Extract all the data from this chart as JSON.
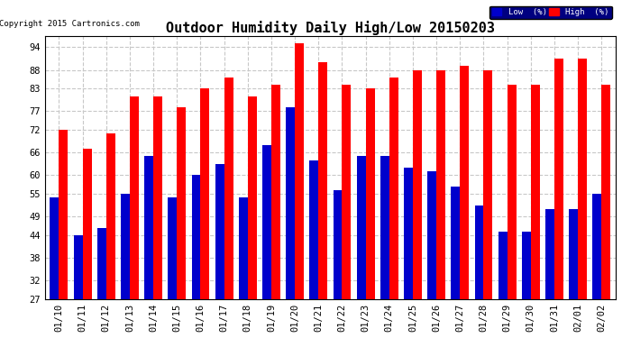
{
  "title": "Outdoor Humidity Daily High/Low 20150203",
  "copyright": "Copyright 2015 Cartronics.com",
  "dates": [
    "01/10",
    "01/11",
    "01/12",
    "01/13",
    "01/14",
    "01/15",
    "01/16",
    "01/17",
    "01/18",
    "01/19",
    "01/20",
    "01/21",
    "01/22",
    "01/23",
    "01/24",
    "01/25",
    "01/26",
    "01/27",
    "01/28",
    "01/29",
    "01/30",
    "01/31",
    "02/01",
    "02/02"
  ],
  "high": [
    72,
    67,
    71,
    81,
    81,
    78,
    83,
    86,
    81,
    84,
    95,
    90,
    84,
    83,
    86,
    88,
    88,
    89,
    88,
    84,
    84,
    91,
    91,
    84
  ],
  "low": [
    54,
    44,
    46,
    55,
    65,
    54,
    60,
    63,
    54,
    68,
    78,
    64,
    56,
    65,
    65,
    62,
    61,
    57,
    52,
    45,
    45,
    51,
    51,
    55
  ],
  "high_color": "#ff0000",
  "low_color": "#0000cc",
  "bg_color": "#ffffff",
  "grid_color": "#c8c8c8",
  "yticks": [
    27,
    32,
    38,
    44,
    49,
    55,
    60,
    66,
    72,
    77,
    83,
    88,
    94
  ],
  "ymin": 27,
  "ymax": 97,
  "title_fontsize": 11,
  "tick_fontsize": 7.5,
  "legend_low_label": "Low  (%)",
  "legend_high_label": "High  (%)"
}
